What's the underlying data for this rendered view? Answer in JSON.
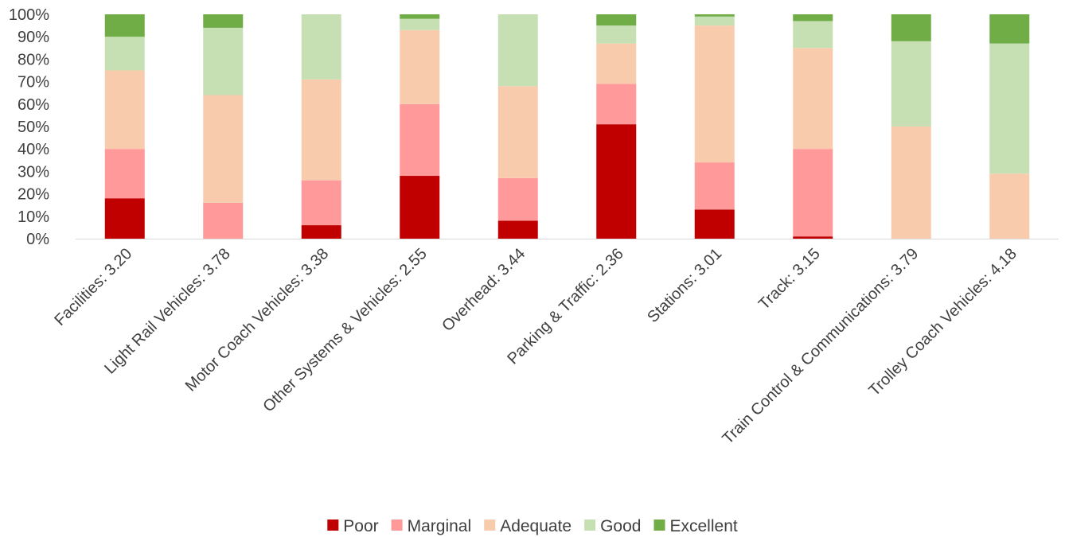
{
  "chart_data": {
    "type": "bar",
    "stacked": true,
    "percent_stacked": true,
    "title": "",
    "xlabel": "",
    "ylabel": "",
    "ylim": [
      0,
      100
    ],
    "y_ticks": [
      "0%",
      "10%",
      "20%",
      "30%",
      "40%",
      "50%",
      "60%",
      "70%",
      "80%",
      "90%",
      "100%"
    ],
    "grid": false,
    "legend_position": "bottom",
    "categories": [
      "Facilities: 3.20",
      "Light Rail Vehicles: 3.78",
      "Motor Coach Vehicles: 3.38",
      "Other Systems & Vehicles: 2.55",
      "Overhead: 3.44",
      "Parking & Traffic: 2.36",
      "Stations: 3.01",
      "Track: 3.15",
      "Train Control & Communications: 3.79",
      "Trolley Coach Vehicles: 4.18"
    ],
    "series": [
      {
        "name": "Poor",
        "color": "#C00000",
        "values": [
          18,
          0,
          6,
          28,
          8,
          51,
          13,
          1,
          0,
          0
        ]
      },
      {
        "name": "Marginal",
        "color": "#FF999A",
        "values": [
          22,
          16,
          20,
          32,
          19,
          18,
          21,
          39,
          0,
          0
        ]
      },
      {
        "name": "Adequate",
        "color": "#F8CBAD",
        "values": [
          35,
          48,
          45,
          33,
          41,
          18,
          61,
          45,
          50,
          29
        ]
      },
      {
        "name": "Good",
        "color": "#C6E0B4",
        "values": [
          15,
          30,
          29,
          5,
          32,
          8,
          4,
          12,
          38,
          58
        ]
      },
      {
        "name": "Excellent",
        "color": "#70AD47",
        "values": [
          10,
          6,
          0,
          2,
          0,
          5,
          1,
          3,
          12,
          13
        ]
      }
    ]
  }
}
